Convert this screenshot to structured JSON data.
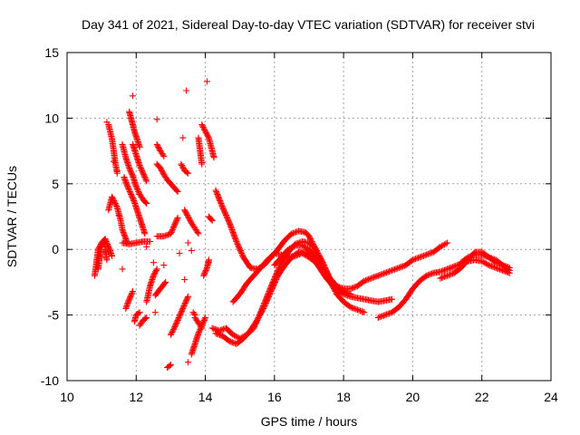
{
  "chart_data": {
    "type": "scatter",
    "title": "Day 341 of 2021, Sidereal Day-to-day VTEC variation (SDTVAR) for receiver stvi",
    "xlabel": "GPS time / hours",
    "ylabel": "SDTVAR / TECUs",
    "xlim": [
      10,
      24
    ],
    "ylim": [
      -10,
      15
    ],
    "xticks": [
      "10",
      "12",
      "14",
      "16",
      "18",
      "20",
      "22",
      "24"
    ],
    "yticks": [
      "-10",
      "-5",
      "0",
      "5",
      "10",
      "15"
    ],
    "grid": true,
    "marker": "+",
    "color": "#ff0000",
    "segments": [
      [
        [
          10.8,
          -2.0
        ],
        [
          10.85,
          -1.0
        ],
        [
          10.9,
          0.0
        ],
        [
          11.0,
          0.5
        ],
        [
          11.1,
          0.8
        ],
        [
          11.2,
          0.2
        ],
        [
          11.3,
          -0.5
        ]
      ],
      [
        [
          10.9,
          -1.5
        ],
        [
          10.95,
          -0.5
        ],
        [
          11.0,
          0.2
        ],
        [
          11.05,
          0.6
        ],
        [
          11.1,
          0.3
        ],
        [
          11.15,
          -0.8
        ]
      ],
      [
        [
          11.2,
          3.0
        ],
        [
          11.3,
          4.0
        ],
        [
          11.45,
          3.2
        ],
        [
          11.55,
          2.2
        ],
        [
          11.6,
          1.5
        ],
        [
          11.7,
          0.8
        ],
        [
          11.75,
          0.5
        ]
      ],
      [
        [
          11.2,
          9.5
        ],
        [
          11.3,
          8.4
        ],
        [
          11.35,
          7.5
        ],
        [
          11.4,
          6.5
        ],
        [
          11.45,
          5.8
        ]
      ],
      [
        [
          11.6,
          8.0
        ],
        [
          11.7,
          7.0
        ],
        [
          11.8,
          6.2
        ],
        [
          11.9,
          5.6
        ],
        [
          12.0,
          4.8
        ],
        [
          12.1,
          4.2
        ],
        [
          12.2,
          3.8
        ],
        [
          12.3,
          3.5
        ]
      ],
      [
        [
          11.65,
          5.5
        ],
        [
          11.75,
          4.8
        ],
        [
          11.85,
          4.2
        ],
        [
          11.95,
          3.6
        ],
        [
          12.05,
          2.8
        ],
        [
          12.15,
          2.0
        ],
        [
          12.25,
          1.2
        ]
      ],
      [
        [
          11.8,
          10.5
        ],
        [
          11.85,
          10.0
        ],
        [
          11.9,
          9.5
        ],
        [
          11.95,
          9.0
        ],
        [
          12.0,
          8.6
        ],
        [
          12.1,
          7.8
        ]
      ],
      [
        [
          11.9,
          8.0
        ],
        [
          12.0,
          7.2
        ],
        [
          12.1,
          6.4
        ],
        [
          12.2,
          5.8
        ],
        [
          12.3,
          5.2
        ]
      ],
      [
        [
          11.6,
          0.5
        ],
        [
          11.8,
          0.4
        ],
        [
          12.0,
          0.5
        ],
        [
          12.2,
          0.6
        ],
        [
          12.4,
          0.6
        ]
      ],
      [
        [
          11.7,
          -4.5
        ],
        [
          11.8,
          -3.8
        ],
        [
          11.9,
          -3.2
        ]
      ],
      [
        [
          11.95,
          -5.5
        ],
        [
          12.0,
          -5.0
        ],
        [
          12.1,
          -4.8
        ]
      ],
      [
        [
          12.1,
          -5.8
        ],
        [
          12.2,
          -5.4
        ],
        [
          12.3,
          -5.2
        ]
      ],
      [
        [
          12.3,
          -4.0
        ],
        [
          12.4,
          -2.8
        ],
        [
          12.5,
          -2.0
        ],
        [
          12.6,
          -1.5
        ]
      ],
      [
        [
          12.55,
          -3.5
        ],
        [
          12.7,
          -3.0
        ],
        [
          12.85,
          -2.5
        ]
      ],
      [
        [
          12.6,
          1.0
        ],
        [
          12.8,
          1.0
        ],
        [
          13.0,
          1.2
        ],
        [
          13.1,
          1.8
        ],
        [
          13.2,
          2.4
        ]
      ],
      [
        [
          12.6,
          8.0
        ],
        [
          12.7,
          7.5
        ],
        [
          12.8,
          7.1
        ]
      ],
      [
        [
          12.6,
          6.5
        ],
        [
          12.7,
          6.2
        ],
        [
          12.8,
          5.7
        ],
        [
          12.9,
          5.3
        ],
        [
          13.0,
          5.0
        ],
        [
          13.1,
          4.7
        ],
        [
          13.2,
          4.4
        ]
      ],
      [
        [
          12.9,
          -9.0
        ],
        [
          13.0,
          -8.8
        ]
      ],
      [
        [
          13.0,
          -6.5
        ],
        [
          13.1,
          -6.0
        ],
        [
          13.2,
          -5.4
        ],
        [
          13.3,
          -4.8
        ],
        [
          13.4,
          -4.2
        ],
        [
          13.5,
          -3.6
        ]
      ],
      [
        [
          13.3,
          6.5
        ],
        [
          13.4,
          6.0
        ],
        [
          13.5,
          5.8
        ]
      ],
      [
        [
          13.4,
          3.0
        ],
        [
          13.5,
          2.5
        ],
        [
          13.6,
          2.0
        ],
        [
          13.7,
          1.6
        ],
        [
          13.8,
          1.2
        ]
      ],
      [
        [
          13.6,
          -8.0
        ],
        [
          13.7,
          -7.2
        ],
        [
          13.8,
          -6.4
        ],
        [
          13.9,
          -5.8
        ],
        [
          14.0,
          -5.2
        ]
      ],
      [
        [
          13.7,
          -5.2
        ],
        [
          13.8,
          -5.6
        ],
        [
          13.9,
          -6.0
        ]
      ],
      [
        [
          13.65,
          -4.8
        ],
        [
          13.7,
          -5.0
        ]
      ],
      [
        [
          13.8,
          8.5
        ],
        [
          13.85,
          7.5
        ],
        [
          13.9,
          6.5
        ]
      ],
      [
        [
          13.9,
          9.5
        ],
        [
          14.0,
          9.0
        ],
        [
          14.1,
          8.5
        ],
        [
          14.2,
          7.5
        ],
        [
          14.25,
          7.0
        ]
      ],
      [
        [
          13.95,
          -2.0
        ],
        [
          14.05,
          -1.4
        ],
        [
          14.1,
          -0.8
        ]
      ],
      [
        [
          14.1,
          2.5
        ],
        [
          14.2,
          2.2
        ]
      ],
      [
        [
          14.2,
          -6.0
        ],
        [
          14.4,
          -6.2
        ],
        [
          14.6,
          -6.0
        ],
        [
          14.8,
          -6.5
        ],
        [
          15.0,
          -6.8
        ],
        [
          15.2,
          -6.5
        ],
        [
          15.4,
          -6.0
        ],
        [
          15.6,
          -4.8
        ],
        [
          15.8,
          -3.5
        ],
        [
          16.0,
          -2.2
        ],
        [
          16.2,
          -1.0
        ],
        [
          16.4,
          -0.2
        ],
        [
          16.6,
          0.4
        ],
        [
          16.8,
          0.6
        ],
        [
          17.0,
          0.5
        ],
        [
          17.2,
          0.0
        ],
        [
          17.4,
          -1.0
        ],
        [
          17.6,
          -2.2
        ],
        [
          17.8,
          -3.0
        ],
        [
          18.0,
          -3.4
        ],
        [
          18.2,
          -3.6
        ],
        [
          18.4,
          -3.7
        ],
        [
          18.6,
          -3.8
        ],
        [
          18.8,
          -3.9
        ],
        [
          19.0,
          -4.0
        ],
        [
          19.2,
          -3.9
        ],
        [
          19.4,
          -3.8
        ]
      ],
      [
        [
          14.3,
          -6.4
        ],
        [
          14.5,
          -6.6
        ],
        [
          14.7,
          -7.0
        ],
        [
          14.9,
          -7.2
        ],
        [
          15.1,
          -6.8
        ],
        [
          15.3,
          -6.2
        ],
        [
          15.5,
          -5.4
        ],
        [
          15.7,
          -4.4
        ],
        [
          15.9,
          -3.2
        ],
        [
          16.1,
          -2.0
        ],
        [
          16.3,
          -1.2
        ],
        [
          16.5,
          -0.6
        ],
        [
          16.7,
          -0.2
        ],
        [
          16.9,
          -0.2
        ],
        [
          17.1,
          -0.6
        ],
        [
          17.3,
          -1.4
        ],
        [
          17.5,
          -2.2
        ],
        [
          17.7,
          -2.8
        ],
        [
          17.9,
          -3.2
        ]
      ],
      [
        [
          14.3,
          4.5
        ],
        [
          14.5,
          3.2
        ],
        [
          14.7,
          2.0
        ],
        [
          14.9,
          0.6
        ],
        [
          15.1,
          -0.6
        ],
        [
          15.3,
          -1.4
        ],
        [
          15.5,
          -1.5
        ],
        [
          15.7,
          -1.2
        ],
        [
          15.9,
          -0.6
        ],
        [
          16.1,
          0.0
        ],
        [
          16.3,
          0.7
        ],
        [
          16.5,
          1.2
        ],
        [
          16.7,
          1.4
        ],
        [
          16.9,
          1.3
        ],
        [
          17.0,
          1.0
        ],
        [
          17.2,
          0.0
        ],
        [
          17.4,
          -1.2
        ],
        [
          17.6,
          -2.2
        ],
        [
          17.8,
          -2.8
        ],
        [
          18.0,
          -3.0
        ],
        [
          18.2,
          -3.0
        ],
        [
          18.4,
          -2.8
        ],
        [
          18.6,
          -2.4
        ],
        [
          18.8,
          -2.2
        ],
        [
          19.0,
          -2.0
        ],
        [
          19.2,
          -1.8
        ],
        [
          19.4,
          -1.6
        ],
        [
          19.6,
          -1.4
        ],
        [
          19.8,
          -1.2
        ],
        [
          20.0,
          -0.8
        ],
        [
          20.2,
          -0.6
        ],
        [
          20.4,
          -0.4
        ],
        [
          20.6,
          -0.2
        ],
        [
          20.8,
          0.2
        ],
        [
          21.0,
          0.5
        ]
      ],
      [
        [
          14.8,
          -4.0
        ],
        [
          15.0,
          -3.4
        ],
        [
          15.2,
          -2.6
        ],
        [
          15.4,
          -2.0
        ],
        [
          15.6,
          -1.4
        ],
        [
          15.8,
          -0.8
        ],
        [
          16.0,
          -0.3
        ],
        [
          16.2,
          -0.4
        ],
        [
          16.4,
          -0.6
        ],
        [
          16.6,
          -0.5
        ],
        [
          16.8,
          -0.3
        ],
        [
          17.0,
          -0.6
        ],
        [
          17.2,
          -1.0
        ],
        [
          17.4,
          -1.6
        ],
        [
          17.6,
          -2.4
        ],
        [
          17.8,
          -3.4
        ],
        [
          18.0,
          -4.0
        ],
        [
          18.2,
          -4.4
        ],
        [
          18.4,
          -4.6
        ],
        [
          18.6,
          -4.8
        ]
      ],
      [
        [
          16.0,
          -1.2
        ],
        [
          16.2,
          -0.6
        ],
        [
          16.4,
          0.0
        ],
        [
          16.6,
          0.3
        ],
        [
          16.8,
          0.3
        ],
        [
          17.0,
          0.0
        ],
        [
          17.2,
          -0.6
        ],
        [
          17.4,
          -1.4
        ],
        [
          17.6,
          -2.2
        ],
        [
          17.8,
          -2.8
        ],
        [
          18.0,
          -3.2
        ],
        [
          18.2,
          -3.4
        ]
      ],
      [
        [
          19.0,
          -5.2
        ],
        [
          19.2,
          -5.0
        ],
        [
          19.4,
          -4.8
        ],
        [
          19.6,
          -4.4
        ],
        [
          19.8,
          -3.8
        ],
        [
          20.0,
          -3.0
        ],
        [
          20.2,
          -2.4
        ],
        [
          20.4,
          -2.0
        ],
        [
          20.6,
          -1.8
        ],
        [
          20.8,
          -1.7
        ],
        [
          21.0,
          -1.5
        ],
        [
          21.2,
          -1.3
        ],
        [
          21.4,
          -1.1
        ],
        [
          21.6,
          -0.9
        ],
        [
          21.8,
          -0.8
        ],
        [
          22.0,
          -0.9
        ],
        [
          22.2,
          -1.2
        ],
        [
          22.4,
          -1.4
        ],
        [
          22.6,
          -1.6
        ],
        [
          22.8,
          -1.8
        ]
      ],
      [
        [
          20.8,
          -2.2
        ],
        [
          21.0,
          -2.0
        ],
        [
          21.2,
          -1.8
        ],
        [
          21.4,
          -1.4
        ],
        [
          21.6,
          -0.8
        ],
        [
          21.8,
          -0.2
        ],
        [
          22.0,
          -0.2
        ],
        [
          22.2,
          -0.6
        ],
        [
          22.4,
          -1.0
        ],
        [
          22.6,
          -1.2
        ],
        [
          22.8,
          -1.6
        ]
      ],
      [
        [
          21.4,
          -1.0
        ],
        [
          21.6,
          -0.6
        ],
        [
          21.8,
          -0.4
        ],
        [
          22.0,
          -0.4
        ],
        [
          22.2,
          -0.6
        ],
        [
          22.4,
          -0.8
        ],
        [
          22.6,
          -1.2
        ],
        [
          22.8,
          -1.4
        ]
      ]
    ],
    "isolated_points": [
      [
        11.0,
        -0.6
      ],
      [
        11.1,
        -0.2
      ],
      [
        11.15,
        9.7
      ],
      [
        11.35,
        6.7
      ],
      [
        11.45,
        6.0
      ],
      [
        11.5,
        2.6
      ],
      [
        11.6,
        -1.5
      ],
      [
        11.7,
        0.6
      ],
      [
        11.9,
        11.7
      ],
      [
        12.3,
        0.2
      ],
      [
        12.5,
        -1.0
      ],
      [
        12.55,
        -4.8
      ],
      [
        12.6,
        9.9
      ],
      [
        12.8,
        -1.2
      ],
      [
        13.25,
        -0.3
      ],
      [
        13.35,
        8.5
      ],
      [
        13.4,
        -2.3
      ],
      [
        13.45,
        12.1
      ],
      [
        13.5,
        -8.6
      ],
      [
        13.5,
        0.5
      ],
      [
        13.6,
        -0.1
      ],
      [
        14.05,
        12.8
      ],
      [
        14.1,
        -1.0
      ]
    ]
  }
}
